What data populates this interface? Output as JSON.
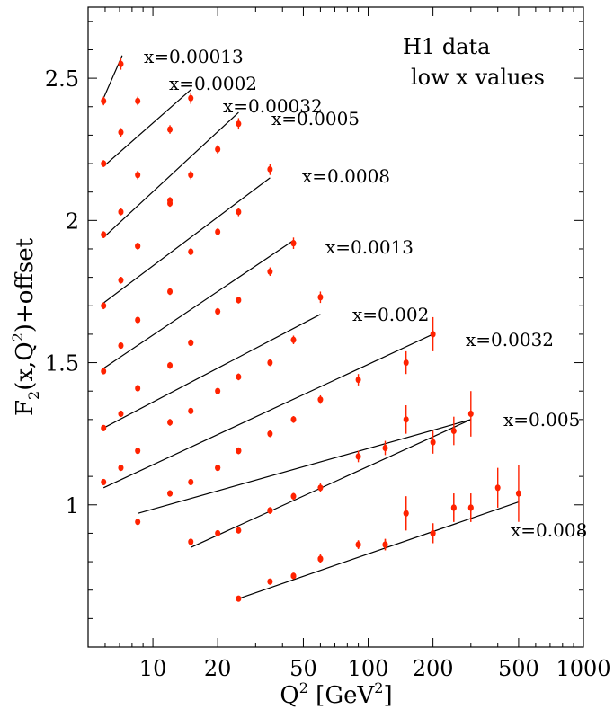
{
  "chart_data": {
    "type": "scatter",
    "title_lines": [
      "H1 data",
      "low x values"
    ],
    "xlabel_parts": [
      "Q",
      "2",
      " [GeV",
      "2",
      "]"
    ],
    "ylabel_parts": [
      "F",
      "2",
      "(x,Q",
      "2",
      ")+offset"
    ],
    "x_scale": "log",
    "xlim": [
      5,
      1000
    ],
    "ylim": [
      0.5,
      2.75
    ],
    "x_ticks": [
      {
        "value": 10,
        "label": "10"
      },
      {
        "value": 20,
        "label": "20"
      },
      {
        "value": 50,
        "label": "50"
      },
      {
        "value": 100,
        "label": "100"
      },
      {
        "value": 200,
        "label": "200"
      },
      {
        "value": 500,
        "label": "500"
      },
      {
        "value": 1000,
        "label": "1000"
      }
    ],
    "y_ticks": [
      {
        "value": 1,
        "label": "1"
      },
      {
        "value": 1.5,
        "label": "1.5"
      },
      {
        "value": 2,
        "label": "2"
      },
      {
        "value": 2.5,
        "label": "2.5"
      }
    ],
    "grid": false,
    "point_color": "#ff2200",
    "fit_color": "#000000",
    "series": [
      {
        "name": "x=0.00013",
        "points": [
          [
            5.9,
            2.42,
            0.015
          ],
          [
            7.1,
            2.55,
            0.02
          ],
          [
            8.5,
            2.42,
            0.015
          ]
        ],
        "fit": [
          [
            5.9,
            2.43
          ],
          [
            7.2,
            2.58
          ]
        ]
      },
      {
        "name": "x=0.0002",
        "points": [
          [
            5.9,
            2.2,
            0.012
          ],
          [
            7.1,
            2.31,
            0.015
          ],
          [
            8.5,
            2.16,
            0.015
          ],
          [
            12,
            2.32,
            0.015
          ],
          [
            15,
            2.43,
            0.02
          ]
        ],
        "fit": [
          [
            5.9,
            2.19
          ],
          [
            15,
            2.46
          ]
        ]
      },
      {
        "name": "x=0.00032",
        "points": [
          [
            5.9,
            1.95,
            0.012
          ],
          [
            7.1,
            2.03,
            0.012
          ],
          [
            8.5,
            1.91,
            0.012
          ],
          [
            12,
            2.06,
            0.012
          ],
          [
            15,
            2.16,
            0.015
          ],
          [
            20,
            2.25,
            0.015
          ],
          [
            25,
            2.34,
            0.02
          ]
        ],
        "fit": [
          [
            5.9,
            1.94
          ],
          [
            25,
            2.38
          ]
        ]
      },
      {
        "name": "x=0.0005",
        "points": [
          [
            5.9,
            1.7,
            0.012
          ],
          [
            7.1,
            1.79,
            0.012
          ],
          [
            8.5,
            1.91,
            0.012
          ],
          [
            12,
            2.07,
            0.012
          ],
          [
            15,
            1.89,
            0.012
          ],
          [
            20,
            1.96,
            0.012
          ],
          [
            25,
            2.03,
            0.015
          ],
          [
            35,
            2.18,
            0.02
          ]
        ],
        "fit": [
          [
            5.9,
            1.71
          ],
          [
            35,
            2.15
          ]
        ]
      },
      {
        "name": "x=0.0008",
        "points": [
          [
            5.9,
            1.47,
            0.01
          ],
          [
            7.1,
            1.56,
            0.01
          ],
          [
            8.5,
            1.65,
            0.01
          ],
          [
            12,
            1.75,
            0.012
          ],
          [
            15,
            1.57,
            0.01
          ],
          [
            20,
            1.68,
            0.012
          ],
          [
            25,
            1.72,
            0.012
          ],
          [
            35,
            1.82,
            0.015
          ],
          [
            45,
            1.92,
            0.02
          ]
        ],
        "fit": [
          [
            5.9,
            1.48
          ],
          [
            45,
            1.93
          ]
        ]
      },
      {
        "name": "x=0.0013",
        "points": [
          [
            5.9,
            1.27,
            0.008
          ],
          [
            7.1,
            1.32,
            0.01
          ],
          [
            8.5,
            1.41,
            0.01
          ],
          [
            12,
            1.49,
            0.012
          ],
          [
            15,
            1.57,
            0.01
          ],
          [
            20,
            1.4,
            0.01
          ],
          [
            25,
            1.45,
            0.012
          ],
          [
            35,
            1.5,
            0.012
          ],
          [
            45,
            1.58,
            0.015
          ],
          [
            60,
            1.73,
            0.02
          ]
        ],
        "fit": [
          [
            5.9,
            1.27
          ],
          [
            60,
            1.67
          ]
        ]
      },
      {
        "name": "x=0.002",
        "points": [
          [
            5.9,
            1.08,
            0.008
          ],
          [
            7.1,
            1.13,
            0.008
          ],
          [
            8.5,
            1.19,
            0.01
          ],
          [
            12,
            1.29,
            0.012
          ],
          [
            15,
            1.33,
            0.01
          ],
          [
            20,
            1.13,
            0.01
          ],
          [
            25,
            1.19,
            0.01
          ],
          [
            35,
            1.25,
            0.012
          ],
          [
            45,
            1.3,
            0.012
          ],
          [
            60,
            1.37,
            0.015
          ],
          [
            90,
            1.44,
            0.02
          ],
          [
            150,
            1.5,
            0.04
          ],
          [
            200,
            1.6,
            0.06
          ]
        ],
        "fit": [
          [
            5.9,
            1.06
          ],
          [
            200,
            1.6
          ]
        ]
      },
      {
        "name": "x=0.0032",
        "points": [
          [
            8.5,
            0.94,
            0.01
          ],
          [
            12,
            1.04,
            0.01
          ],
          [
            15,
            1.08,
            0.01
          ],
          [
            20,
            1.13,
            0.01
          ],
          [
            25,
            1.19,
            0.012
          ],
          [
            35,
            0.98,
            0.01
          ],
          [
            45,
            1.03,
            0.012
          ],
          [
            60,
            1.06,
            0.015
          ],
          [
            90,
            1.17,
            0.02
          ],
          [
            120,
            1.2,
            0.025
          ],
          [
            150,
            1.3,
            0.05
          ],
          [
            200,
            1.22,
            0.04
          ],
          [
            250,
            1.26,
            0.05
          ],
          [
            300,
            1.32,
            0.08
          ]
        ],
        "fit": [
          [
            8.5,
            0.97
          ],
          [
            300,
            1.3
          ]
        ]
      },
      {
        "name": "x=0.005",
        "points": [
          [
            15,
            0.87,
            0.01
          ],
          [
            20,
            0.9,
            0.01
          ],
          [
            25,
            0.91,
            0.01
          ],
          [
            35,
            0.98,
            0.012
          ],
          [
            45,
            0.75,
            0.01
          ],
          [
            60,
            0.81,
            0.015
          ],
          [
            90,
            0.86,
            0.015
          ],
          [
            120,
            0.86,
            0.02
          ],
          [
            150,
            0.97,
            0.06
          ],
          [
            200,
            0.9,
            0.035
          ],
          [
            250,
            0.99,
            0.05
          ],
          [
            300,
            0.99,
            0.05
          ]
        ],
        "fit": [
          [
            15,
            0.85
          ],
          [
            300,
            1.3
          ]
        ]
      },
      {
        "name": "x=0.008",
        "points": [
          [
            25,
            0.67,
            0.008
          ],
          [
            35,
            0.73,
            0.01
          ],
          [
            45,
            0.75,
            0.01
          ],
          [
            60,
            0.81,
            0.015
          ],
          [
            90,
            0.86,
            0.015
          ],
          [
            120,
            0.86,
            0.02
          ],
          [
            150,
            0.97,
            0.06
          ],
          [
            200,
            0.9,
            0.035
          ],
          [
            250,
            0.99,
            0.05
          ],
          [
            300,
            0.99,
            0.05
          ],
          [
            400,
            1.06,
            0.07
          ],
          [
            500,
            1.04,
            0.1
          ]
        ],
        "fit": [
          [
            25,
            0.67
          ],
          [
            500,
            1.01
          ]
        ]
      }
    ]
  }
}
